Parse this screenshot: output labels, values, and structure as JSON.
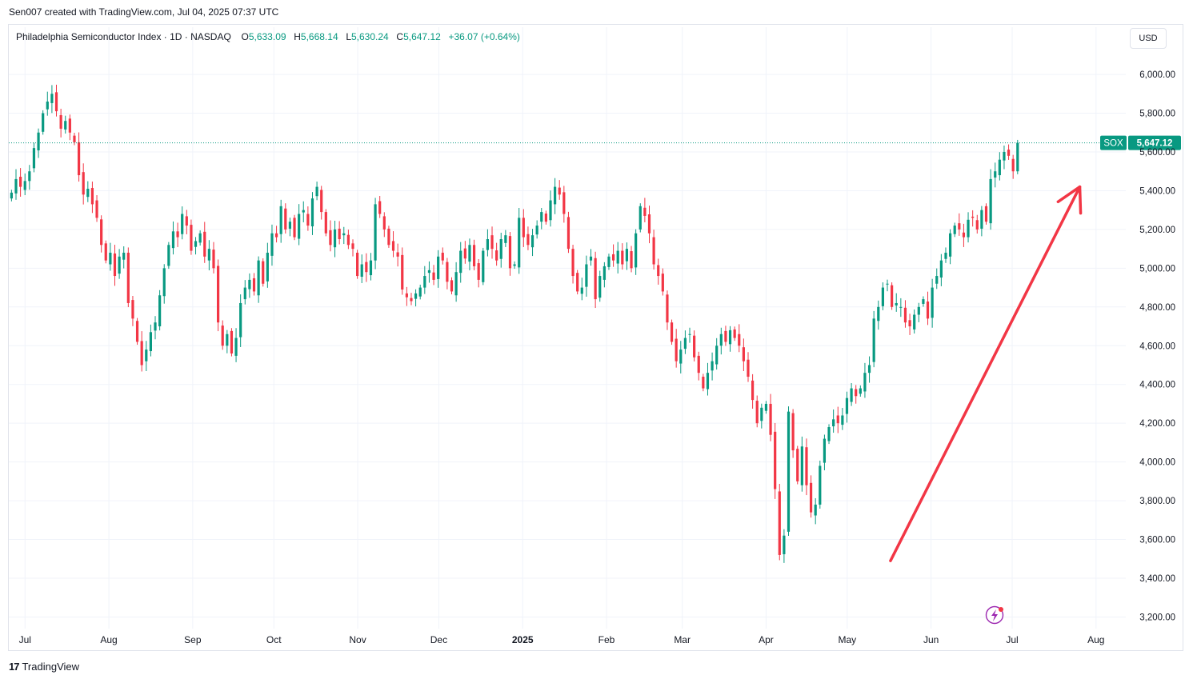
{
  "header": {
    "author_line": "Sen007 created with TradingView.com, Jul 04, 2025 07:37 UTC"
  },
  "legend": {
    "symbol": "Philadelphia Semiconductor Index · 1D · NASDAQ",
    "o_label": "O",
    "o_value": "5,633.09",
    "h_label": "H",
    "h_value": "5,668.14",
    "l_label": "L",
    "l_value": "5,630.24",
    "c_label": "C",
    "c_value": "5,647.12",
    "change": "+36.07 (+0.64%)"
  },
  "currency_button": "USD",
  "price_tag": {
    "ticker": "SOX",
    "value": "5,647.12"
  },
  "branding": {
    "name": "TradingView"
  },
  "colors": {
    "up": "#089981",
    "down": "#f23645",
    "arrow": "#f23645",
    "grid": "#f0f3fa"
  },
  "chart_data": {
    "type": "candlestick",
    "y_ticks": [
      "6,000.00",
      "5,800.00",
      "5,600.00",
      "5,400.00",
      "5,200.00",
      "5,000.00",
      "4,800.00",
      "4,600.00",
      "4,400.00",
      "4,200.00",
      "4,000.00",
      "3,800.00",
      "3,600.00",
      "3,400.00",
      "3,200.00"
    ],
    "y_tick_values": [
      6000,
      5800,
      5600,
      5400,
      5200,
      5000,
      4800,
      4600,
      4400,
      4200,
      4000,
      3800,
      3600,
      3400,
      3200
    ],
    "x_ticks": [
      "Jul",
      "Aug",
      "Sep",
      "Oct",
      "Nov",
      "Dec",
      "2025",
      "Feb",
      "Mar",
      "Apr",
      "May",
      "Jun",
      "Jul",
      "Aug"
    ],
    "x_tick_dates": [
      "2024-07-01",
      "2024-08-01",
      "2024-09-01",
      "2024-10-01",
      "2024-11-01",
      "2024-12-01",
      "2025-01-01",
      "2025-02-01",
      "2025-03-01",
      "2025-04-01",
      "2025-05-01",
      "2025-06-01",
      "2025-07-01",
      "2025-08-01"
    ],
    "x_range": [
      "2024-06-25",
      "2025-08-12"
    ],
    "y_range": [
      3140,
      6120
    ],
    "last_close": 5647.12,
    "annotation": {
      "type": "arrow",
      "from": [
        "2025-05-17",
        3490
      ],
      "to": [
        "2025-07-26",
        5420
      ]
    },
    "closes": [
      5390,
      5460,
      5420,
      5450,
      5500,
      5620,
      5700,
      5800,
      5860,
      5900,
      5810,
      5720,
      5760,
      5700,
      5650,
      5480,
      5380,
      5410,
      5330,
      5260,
      5120,
      5040,
      5080,
      4960,
      5060,
      5080,
      4820,
      4740,
      4620,
      4500,
      4580,
      4670,
      4720,
      4860,
      5000,
      5120,
      5190,
      5160,
      5280,
      5220,
      5090,
      5140,
      5180,
      5060,
      5100,
      5000,
      4720,
      4600,
      4660,
      4560,
      4640,
      4820,
      4900,
      4940,
      4880,
      5040,
      4920,
      5080,
      5180,
      5160,
      5320,
      5200,
      5240,
      5160,
      5280,
      5300,
      5220,
      5360,
      5420,
      5290,
      5180,
      5120,
      5200,
      5150,
      5180,
      5120,
      5100,
      4960,
      5020,
      4980,
      5040,
      5330,
      5280,
      5200,
      5120,
      5090,
      5060,
      4890,
      4850,
      4830,
      4870,
      4900,
      4960,
      4990,
      4940,
      5060,
      5040,
      4930,
      4880,
      4980,
      5090,
      5050,
      5120,
      5010,
      4940,
      5090,
      5150,
      5100,
      5040,
      5150,
      5170,
      5000,
      5020,
      5260,
      5160,
      5120,
      5170,
      5220,
      5290,
      5240,
      5350,
      5420,
      5380,
      5280,
      5100,
      4960,
      4880,
      4900,
      5020,
      5060,
      4840,
      4960,
      5010,
      5060,
      5040,
      5090,
      5020,
      5100,
      5000,
      5180,
      5320,
      5270,
      5180,
      5020,
      4960,
      4880,
      4720,
      4620,
      4520,
      4580,
      4640,
      4660,
      4540,
      4460,
      4380,
      4460,
      4520,
      4600,
      4660,
      4620,
      4680,
      4640,
      4600,
      4520,
      4440,
      4320,
      4200,
      4280,
      4300,
      4140,
      3860,
      3520,
      3620,
      4260,
      4060,
      3900,
      4080,
      3880,
      3740,
      3780,
      3980,
      4120,
      4180,
      4220,
      4200,
      4240,
      4330,
      4380,
      4340,
      4380,
      4460,
      4500,
      4740,
      4800,
      4900,
      4920,
      4800,
      4820,
      4800,
      4720,
      4700,
      4760,
      4800,
      4840,
      4740,
      4900,
      4960,
      5040,
      5080,
      5180,
      5220,
      5200,
      5160,
      5250,
      5260,
      5200,
      5300,
      5240,
      5460,
      5500,
      5560,
      5600,
      5580,
      5500,
      5647.12
    ]
  }
}
